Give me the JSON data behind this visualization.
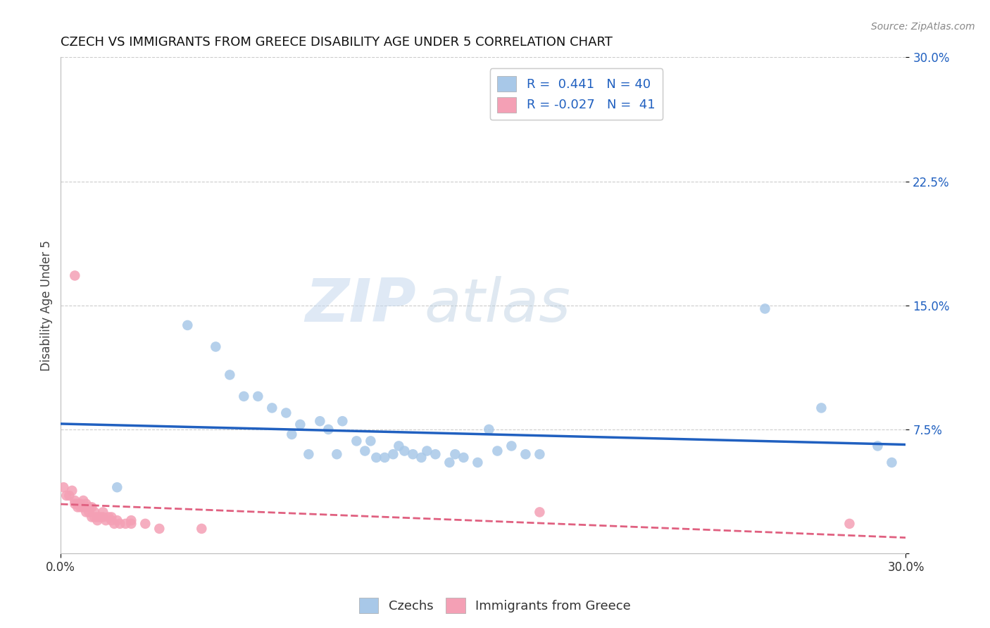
{
  "title": "CZECH VS IMMIGRANTS FROM GREECE DISABILITY AGE UNDER 5 CORRELATION CHART",
  "source": "Source: ZipAtlas.com",
  "ylabel": "Disability Age Under 5",
  "xmin": 0.0,
  "xmax": 0.3,
  "ymin": 0.0,
  "ymax": 0.3,
  "r_czech": 0.441,
  "n_czech": 40,
  "r_greece": -0.027,
  "n_greece": 41,
  "czech_color": "#a8c8e8",
  "greece_color": "#f4a0b5",
  "trend_czech_color": "#2060c0",
  "trend_greece_color": "#e06080",
  "watermark_zip": "ZIP",
  "watermark_atlas": "atlas",
  "czech_x": [
    0.02,
    0.045,
    0.055,
    0.06,
    0.065,
    0.07,
    0.075,
    0.08,
    0.082,
    0.085,
    0.088,
    0.092,
    0.095,
    0.098,
    0.1,
    0.105,
    0.108,
    0.11,
    0.112,
    0.115,
    0.118,
    0.12,
    0.122,
    0.125,
    0.128,
    0.13,
    0.133,
    0.138,
    0.14,
    0.143,
    0.148,
    0.152,
    0.155,
    0.16,
    0.165,
    0.17,
    0.25,
    0.27,
    0.29,
    0.295
  ],
  "czech_y": [
    0.04,
    0.138,
    0.125,
    0.108,
    0.095,
    0.095,
    0.088,
    0.085,
    0.072,
    0.078,
    0.06,
    0.08,
    0.075,
    0.06,
    0.08,
    0.068,
    0.062,
    0.068,
    0.058,
    0.058,
    0.06,
    0.065,
    0.062,
    0.06,
    0.058,
    0.062,
    0.06,
    0.055,
    0.06,
    0.058,
    0.055,
    0.075,
    0.062,
    0.065,
    0.06,
    0.06,
    0.148,
    0.088,
    0.065,
    0.055
  ],
  "greece_x": [
    0.001,
    0.002,
    0.003,
    0.004,
    0.005,
    0.005,
    0.006,
    0.006,
    0.007,
    0.007,
    0.008,
    0.008,
    0.009,
    0.009,
    0.01,
    0.01,
    0.011,
    0.011,
    0.012,
    0.012,
    0.013,
    0.013,
    0.014,
    0.015,
    0.015,
    0.016,
    0.017,
    0.018,
    0.018,
    0.019,
    0.02,
    0.021,
    0.023,
    0.025,
    0.025,
    0.03,
    0.035,
    0.05,
    0.17,
    0.28,
    0.005
  ],
  "greece_y": [
    0.04,
    0.035,
    0.035,
    0.038,
    0.032,
    0.03,
    0.03,
    0.028,
    0.03,
    0.028,
    0.032,
    0.028,
    0.03,
    0.025,
    0.028,
    0.025,
    0.028,
    0.022,
    0.025,
    0.022,
    0.022,
    0.02,
    0.022,
    0.025,
    0.022,
    0.02,
    0.022,
    0.02,
    0.022,
    0.018,
    0.02,
    0.018,
    0.018,
    0.02,
    0.018,
    0.018,
    0.015,
    0.015,
    0.025,
    0.018,
    0.168
  ]
}
